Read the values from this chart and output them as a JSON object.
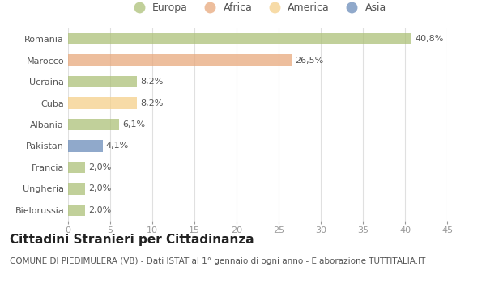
{
  "countries": [
    "Romania",
    "Marocco",
    "Ucraina",
    "Cuba",
    "Albania",
    "Pakistan",
    "Francia",
    "Ungheria",
    "Bielorussia"
  ],
  "values": [
    40.8,
    26.5,
    8.2,
    8.2,
    6.1,
    4.1,
    2.0,
    2.0,
    2.0
  ],
  "labels": [
    "40,8%",
    "26,5%",
    "8,2%",
    "8,2%",
    "6,1%",
    "4,1%",
    "2,0%",
    "2,0%",
    "2,0%"
  ],
  "colors": [
    "#adc178",
    "#e8a87c",
    "#adc178",
    "#f5d08a",
    "#adc178",
    "#6b8cba",
    "#adc178",
    "#adc178",
    "#adc178"
  ],
  "legend_labels": [
    "Europa",
    "Africa",
    "America",
    "Asia"
  ],
  "legend_colors": [
    "#adc178",
    "#e8a87c",
    "#f5d08a",
    "#6b8cba"
  ],
  "xlim": [
    0,
    45
  ],
  "xticks": [
    0,
    5,
    10,
    15,
    20,
    25,
    30,
    35,
    40,
    45
  ],
  "title": "Cittadini Stranieri per Cittadinanza",
  "subtitle": "COMUNE DI PIEDIMULERA (VB) - Dati ISTAT al 1° gennaio di ogni anno - Elaborazione TUTTITALIA.IT",
  "bg_color": "#ffffff",
  "grid_color": "#e0e0e0",
  "bar_height": 0.55,
  "title_fontsize": 11,
  "subtitle_fontsize": 7.5,
  "label_fontsize": 8,
  "tick_fontsize": 8,
  "legend_fontsize": 9,
  "ytick_color": "#555555",
  "xtick_color": "#999999",
  "label_color": "#555555"
}
